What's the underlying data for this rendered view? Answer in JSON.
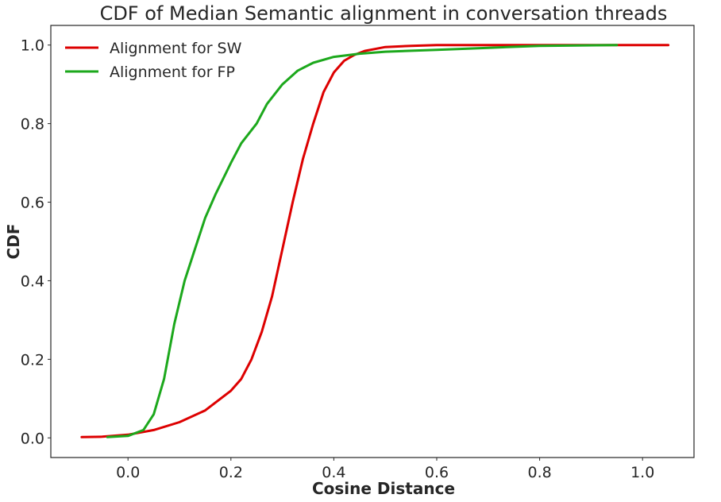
{
  "chart_data": {
    "type": "line",
    "title": "CDF of Median Semantic alignment in conversation threads",
    "xlabel": "Cosine Distance",
    "ylabel": "CDF",
    "xlim": [
      -0.15,
      1.1
    ],
    "ylim": [
      -0.05,
      1.05
    ],
    "xticks": [
      0.0,
      0.2,
      0.4,
      0.6,
      0.8,
      1.0
    ],
    "xtick_labels": [
      "0.0",
      "0.2",
      "0.4",
      "0.6",
      "0.8",
      "1.0"
    ],
    "yticks": [
      0.0,
      0.2,
      0.4,
      0.6,
      0.8,
      1.0
    ],
    "ytick_labels": [
      "0.0",
      "0.2",
      "0.4",
      "0.6",
      "0.8",
      "1.0"
    ],
    "grid": false,
    "legend_position": "top-left",
    "series": [
      {
        "name": "Alignment for SW",
        "color": "#dd0000",
        "x": [
          -0.09,
          -0.05,
          0.0,
          0.05,
          0.1,
          0.15,
          0.2,
          0.22,
          0.24,
          0.26,
          0.28,
          0.3,
          0.32,
          0.34,
          0.36,
          0.38,
          0.4,
          0.42,
          0.44,
          0.46,
          0.48,
          0.5,
          0.55,
          0.6,
          0.65,
          0.7,
          0.8,
          0.9,
          1.0,
          1.05
        ],
        "y": [
          0.002,
          0.003,
          0.008,
          0.02,
          0.04,
          0.07,
          0.12,
          0.15,
          0.2,
          0.27,
          0.36,
          0.48,
          0.6,
          0.71,
          0.8,
          0.88,
          0.93,
          0.96,
          0.975,
          0.985,
          0.99,
          0.995,
          0.998,
          1.0,
          1.0,
          1.0,
          1.0,
          1.0,
          1.0,
          1.0
        ]
      },
      {
        "name": "Alignment for FP",
        "color": "#1ca81c",
        "x": [
          -0.04,
          0.0,
          0.03,
          0.05,
          0.07,
          0.09,
          0.11,
          0.13,
          0.15,
          0.17,
          0.2,
          0.22,
          0.25,
          0.27,
          0.3,
          0.33,
          0.36,
          0.4,
          0.45,
          0.5,
          0.6,
          0.7,
          0.8,
          0.95
        ],
        "y": [
          0.002,
          0.005,
          0.02,
          0.06,
          0.15,
          0.29,
          0.4,
          0.48,
          0.56,
          0.62,
          0.7,
          0.75,
          0.8,
          0.85,
          0.9,
          0.935,
          0.955,
          0.97,
          0.978,
          0.983,
          0.988,
          0.993,
          0.998,
          1.0
        ]
      }
    ]
  }
}
